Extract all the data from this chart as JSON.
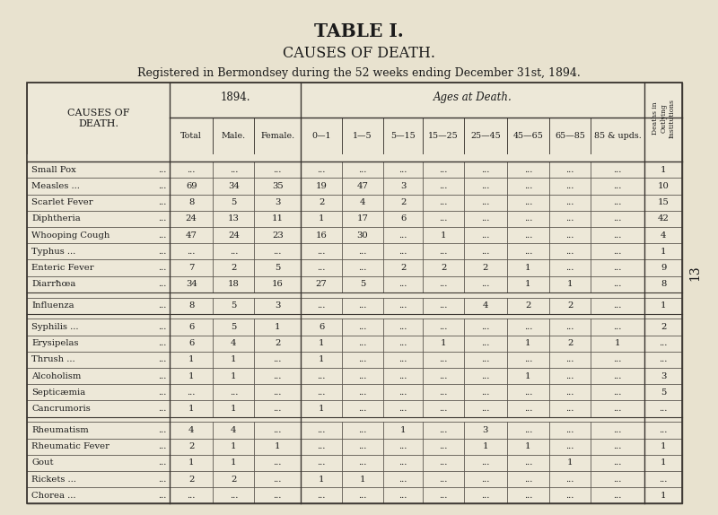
{
  "title1": "TABLE I.",
  "title2": "CAUSES OF DEATH.",
  "subtitle": "Registered in Bermondsey during the 52 weeks ending December 31st, 1894.",
  "bg_color": "#e8e2cf",
  "table_bg": "#ede8d8",
  "header1_1894": "1894.",
  "header2_ages": "Ages at Death.",
  "col_headers": [
    "Total",
    "Male.",
    "Female.",
    "0—1",
    "1—5",
    "5—15",
    "15—25",
    "25—45",
    "45—65",
    "65—85",
    "85 & upds."
  ],
  "last_col_lines": [
    "Deaths in",
    "Outlying",
    "Institutions"
  ],
  "rows": [
    [
      "Small Pox",
      "...",
      "...",
      "...",
      "...",
      "...",
      "...",
      "...",
      "...",
      "...",
      "...",
      "...",
      "1"
    ],
    [
      "Measles ...",
      "69",
      "34",
      "35",
      "19",
      "47",
      "3",
      "...",
      "...",
      "...",
      "...",
      "...",
      "10"
    ],
    [
      "Scarlet Fever",
      "8",
      "5",
      "3",
      "2",
      "4",
      "2",
      "...",
      "...",
      "...",
      "...",
      "...",
      "15"
    ],
    [
      "Diphtheria",
      "24",
      "13",
      "11",
      "1",
      "17",
      "6",
      "...",
      "...",
      "...",
      "...",
      "...",
      "42"
    ],
    [
      "Whooping Cough",
      "47",
      "24",
      "23",
      "16",
      "30",
      "...",
      "1",
      "...",
      "...",
      "...",
      "...",
      "4"
    ],
    [
      "Typhus ...",
      "...",
      "...",
      "...",
      "...",
      "...",
      "...",
      "...",
      "...",
      "...",
      "...",
      "...",
      "1"
    ],
    [
      "Enteric Fever",
      "7",
      "2",
      "5",
      "...",
      "...",
      "2",
      "2",
      "2",
      "1",
      "...",
      "...",
      "9"
    ],
    [
      "Diarrħœa",
      "34",
      "18",
      "16",
      "27",
      "5",
      "...",
      "...",
      "...",
      "1",
      "1",
      "...",
      "8"
    ]
  ],
  "rows2": [
    [
      "Influenza",
      "8",
      "5",
      "3",
      "...",
      "...",
      "...",
      "...",
      "4",
      "2",
      "2",
      "...",
      "1"
    ]
  ],
  "rows3": [
    [
      "Syphilis ...",
      "6",
      "5",
      "1",
      "6",
      "...",
      "...",
      "...",
      "...",
      "...",
      "...",
      "...",
      "2"
    ],
    [
      "Erysipelas",
      "6",
      "4",
      "2",
      "1",
      "...",
      "...",
      "1",
      "...",
      "1",
      "2",
      "1",
      "..."
    ],
    [
      "Thrush ...",
      "1",
      "1",
      "...",
      "1",
      "...",
      "...",
      "...",
      "...",
      "...",
      "...",
      "...",
      "..."
    ],
    [
      "Alcoholism",
      "1",
      "1",
      "...",
      "...",
      "...",
      "...",
      "...",
      "...",
      "1",
      "...",
      "...",
      "3"
    ],
    [
      "Septicæmia",
      "...",
      "...",
      "...",
      "...",
      "...",
      "...",
      "...",
      "...",
      "...",
      "...",
      "...",
      "5"
    ],
    [
      "Cancrumoris",
      "1",
      "1",
      "...",
      "1",
      "...",
      "...",
      "...",
      "...",
      "...",
      "...",
      "...",
      "..."
    ]
  ],
  "rows4": [
    [
      "Rheumatism",
      "4",
      "4",
      "...",
      "...",
      "...",
      "1",
      "...",
      "3",
      "...",
      "...",
      "...",
      "..."
    ],
    [
      "Rheumatic Fever",
      "2",
      "1",
      "1",
      "...",
      "...",
      "...",
      "...",
      "1",
      "1",
      "...",
      "...",
      "1"
    ],
    [
      "Gout",
      "1",
      "1",
      "...",
      "...",
      "...",
      "...",
      "...",
      "...",
      "...",
      "1",
      "...",
      "1"
    ],
    [
      "Rickets ...",
      "2",
      "2",
      "...",
      "1",
      "1",
      "...",
      "...",
      "...",
      "...",
      "...",
      "...",
      "..."
    ],
    [
      "Chorea ...",
      "...",
      "...",
      "...",
      "...",
      "...",
      "...",
      "...",
      "...",
      "...",
      "...",
      "...",
      "1"
    ]
  ],
  "row_dots": [
    [
      "Small Pox",
      "..."
    ],
    [
      "Measles ...",
      "..."
    ],
    [
      "Scarlet Fever",
      "..."
    ],
    [
      "Diphtheria",
      "..."
    ],
    [
      "Typhus ...",
      "..."
    ],
    [
      "Enteric Fever",
      "..."
    ],
    [
      "Diarrħœa",
      "..."
    ],
    [
      "Influenza",
      "..."
    ],
    [
      "Syphilis ...",
      "..."
    ],
    [
      "Erysipelas",
      "..."
    ],
    [
      "Thrush ...",
      "..."
    ],
    [
      "Alcoholism",
      "..."
    ],
    [
      "Septicæmia",
      "..."
    ],
    [
      "Cancrumoris",
      "..."
    ],
    [
      "Rheumatism",
      "..."
    ],
    [
      "Rheumatic Fever",
      ""
    ],
    [
      "Gout",
      "..."
    ],
    [
      "Rickets ...",
      "..."
    ],
    [
      "Chorea ...",
      "..."
    ]
  ],
  "page_num": "13"
}
